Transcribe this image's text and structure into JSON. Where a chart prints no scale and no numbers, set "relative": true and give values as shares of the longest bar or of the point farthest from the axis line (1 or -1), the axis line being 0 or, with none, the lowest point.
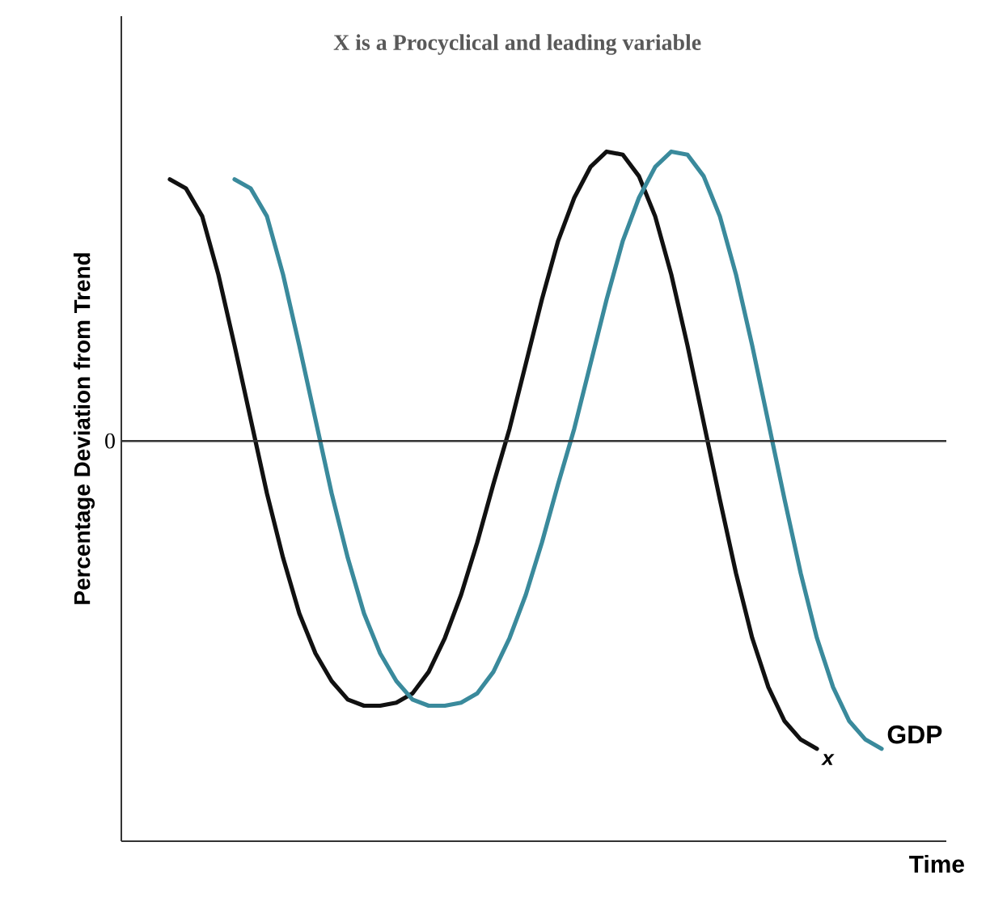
{
  "chart_data": {
    "type": "line",
    "title": "X is a Procyclical and leading variable",
    "xlabel": "Time",
    "ylabel": "Percentage Deviation from Trend",
    "relative": true,
    "categories": [
      null,
      null,
      null,
      null,
      null,
      null,
      null,
      null,
      null,
      null,
      null,
      null,
      null,
      null,
      null,
      null,
      null,
      null,
      null,
      null,
      null,
      null,
      null,
      null,
      null,
      null,
      null,
      null,
      null,
      null,
      null,
      null,
      null,
      null,
      null,
      null,
      null,
      null,
      null,
      null,
      null,
      null,
      null,
      null,
      null
    ],
    "series": [
      {
        "name": "x",
        "color": "#111111",
        "values": [
          0.85,
          0.82,
          0.73,
          0.54,
          0.31,
          0.07,
          -0.17,
          -0.38,
          -0.56,
          -0.69,
          -0.78,
          -0.84,
          -0.86,
          -0.86,
          -0.85,
          -0.82,
          -0.75,
          -0.64,
          -0.5,
          -0.33,
          -0.14,
          0.04,
          0.25,
          0.46,
          0.65,
          0.79,
          0.89,
          0.94,
          0.93,
          0.86,
          0.73,
          0.54,
          0.31,
          0.06,
          -0.19,
          -0.43,
          -0.64,
          -0.8,
          -0.91,
          -0.97,
          -1,
          null,
          null,
          null,
          null
        ]
      },
      {
        "name": "GDP",
        "color": "#3a8a9c",
        "values": [
          null,
          null,
          null,
          null,
          0.85,
          0.82,
          0.73,
          0.54,
          0.31,
          0.07,
          -0.17,
          -0.38,
          -0.56,
          -0.69,
          -0.78,
          -0.84,
          -0.86,
          -0.86,
          -0.85,
          -0.82,
          -0.75,
          -0.64,
          -0.5,
          -0.33,
          -0.14,
          0.04,
          0.25,
          0.46,
          0.65,
          0.79,
          0.89,
          0.94,
          0.93,
          0.86,
          0.73,
          0.54,
          0.31,
          0.06,
          -0.19,
          -0.43,
          -0.64,
          -0.8,
          -0.91,
          -0.97,
          -1
        ]
      }
    ],
    "ref_lines": [
      {
        "axis": "y",
        "value": 0,
        "label": "0",
        "color": "#333333"
      }
    ]
  }
}
